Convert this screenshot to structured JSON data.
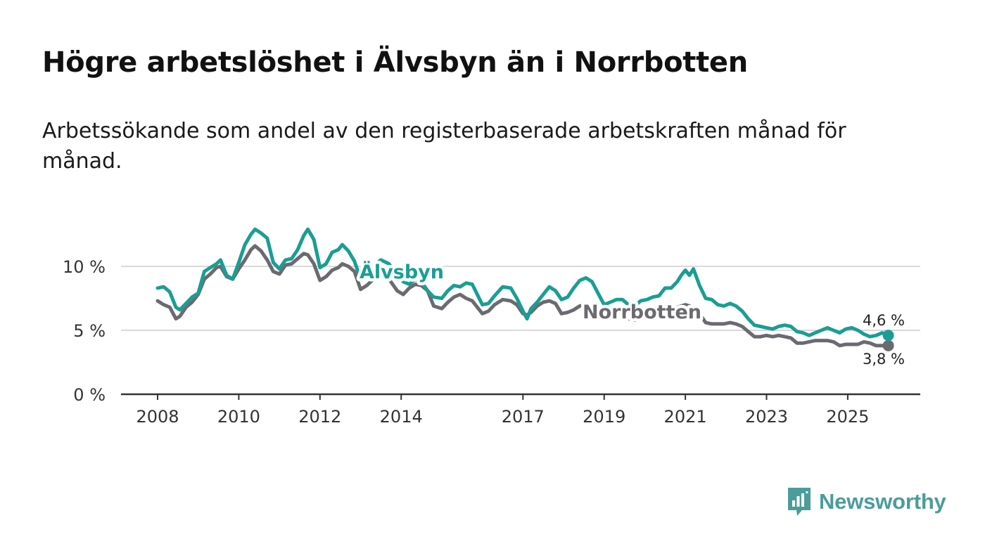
{
  "header": {
    "title": "Högre arbetslöshet i Älvsbyn än i Norrbotten",
    "subtitle": "Arbetssökande som andel av den registerbaserade arbetskraften månad för månad."
  },
  "brand": {
    "name": "Newsworthy",
    "color": "#4a9d9a",
    "icon": "bar-chart-bubble-icon"
  },
  "chart_data": {
    "type": "line",
    "title": "Högre arbetslöshet i Älvsbyn än i Norrbotten",
    "subtitle": "Arbetssökande som andel av den registerbaserade arbetskraften månad för månad.",
    "xlabel": "",
    "ylabel": "",
    "xlim": [
      2007.8,
      2026.5
    ],
    "ylim": [
      0,
      13
    ],
    "x_ticks": [
      {
        "value": 2008,
        "label": "2008"
      },
      {
        "value": 2010,
        "label": "2010"
      },
      {
        "value": 2012,
        "label": "2012"
      },
      {
        "value": 2014,
        "label": "2014"
      },
      {
        "value": 2017,
        "label": "2017"
      },
      {
        "value": 2019,
        "label": "2019"
      },
      {
        "value": 2021,
        "label": "2021"
      },
      {
        "value": 2023,
        "label": "2023"
      },
      {
        "value": 2025,
        "label": "2025"
      }
    ],
    "y_ticks": [
      {
        "value": 0,
        "label": "0 %"
      },
      {
        "value": 5,
        "label": "5 %"
      },
      {
        "value": 10,
        "label": "10 %"
      }
    ],
    "grid": "horizontal",
    "series": [
      {
        "name": "Älvsbyn",
        "color": "#1a9e93",
        "end_label": "4,6 %",
        "points": [
          [
            2008.0,
            8.3
          ],
          [
            2008.15,
            8.4
          ],
          [
            2008.3,
            8.0
          ],
          [
            2008.45,
            6.8
          ],
          [
            2008.55,
            6.6
          ],
          [
            2008.7,
            7.1
          ],
          [
            2008.85,
            7.6
          ],
          [
            2009.0,
            7.9
          ],
          [
            2009.15,
            9.6
          ],
          [
            2009.3,
            9.9
          ],
          [
            2009.45,
            10.2
          ],
          [
            2009.55,
            10.5
          ],
          [
            2009.7,
            9.3
          ],
          [
            2009.85,
            9.0
          ],
          [
            2010.0,
            10.3
          ],
          [
            2010.15,
            11.7
          ],
          [
            2010.3,
            12.5
          ],
          [
            2010.4,
            12.9
          ],
          [
            2010.55,
            12.6
          ],
          [
            2010.7,
            12.2
          ],
          [
            2010.85,
            10.3
          ],
          [
            2011.0,
            9.8
          ],
          [
            2011.15,
            10.5
          ],
          [
            2011.3,
            10.6
          ],
          [
            2011.45,
            11.3
          ],
          [
            2011.6,
            12.4
          ],
          [
            2011.7,
            12.9
          ],
          [
            2011.85,
            12.1
          ],
          [
            2012.0,
            9.9
          ],
          [
            2012.15,
            10.2
          ],
          [
            2012.3,
            11.1
          ],
          [
            2012.45,
            11.3
          ],
          [
            2012.55,
            11.7
          ],
          [
            2012.7,
            11.2
          ],
          [
            2012.85,
            10.4
          ],
          [
            2013.0,
            9.0
          ],
          [
            2013.15,
            9.4
          ],
          [
            2013.35,
            10.1
          ],
          [
            2013.5,
            10.5
          ],
          [
            2013.7,
            10.2
          ],
          [
            2013.9,
            9.3
          ],
          [
            2014.05,
            8.8
          ],
          [
            2014.2,
            8.6
          ],
          [
            2014.35,
            9.0
          ],
          [
            2014.5,
            8.8
          ],
          [
            2014.65,
            8.1
          ],
          [
            2014.8,
            7.6
          ],
          [
            2015.0,
            7.5
          ],
          [
            2015.15,
            8.1
          ],
          [
            2015.3,
            8.5
          ],
          [
            2015.45,
            8.4
          ],
          [
            2015.6,
            8.7
          ],
          [
            2015.75,
            8.6
          ],
          [
            2016.0,
            7.0
          ],
          [
            2016.15,
            7.1
          ],
          [
            2016.3,
            7.7
          ],
          [
            2016.5,
            8.4
          ],
          [
            2016.7,
            8.3
          ],
          [
            2016.85,
            7.5
          ],
          [
            2017.0,
            6.5
          ],
          [
            2017.1,
            5.9
          ],
          [
            2017.2,
            6.7
          ],
          [
            2017.35,
            7.2
          ],
          [
            2017.5,
            7.8
          ],
          [
            2017.65,
            8.4
          ],
          [
            2017.8,
            8.1
          ],
          [
            2017.95,
            7.4
          ],
          [
            2018.1,
            7.6
          ],
          [
            2018.25,
            8.3
          ],
          [
            2018.4,
            8.9
          ],
          [
            2018.55,
            9.1
          ],
          [
            2018.7,
            8.8
          ],
          [
            2018.85,
            7.9
          ],
          [
            2019.0,
            7.0
          ],
          [
            2019.15,
            7.2
          ],
          [
            2019.3,
            7.4
          ],
          [
            2019.45,
            7.4
          ],
          [
            2019.6,
            7.0
          ],
          [
            2019.75,
            6.9
          ],
          [
            2019.9,
            7.3
          ],
          [
            2020.05,
            7.4
          ],
          [
            2020.2,
            7.6
          ],
          [
            2020.35,
            7.7
          ],
          [
            2020.5,
            8.3
          ],
          [
            2020.65,
            8.3
          ],
          [
            2020.8,
            8.8
          ],
          [
            2020.9,
            9.3
          ],
          [
            2021.0,
            9.7
          ],
          [
            2021.1,
            9.3
          ],
          [
            2021.2,
            9.8
          ],
          [
            2021.35,
            8.5
          ],
          [
            2021.5,
            7.5
          ],
          [
            2021.65,
            7.4
          ],
          [
            2021.8,
            7.0
          ],
          [
            2021.95,
            6.9
          ],
          [
            2022.1,
            7.1
          ],
          [
            2022.25,
            6.9
          ],
          [
            2022.4,
            6.5
          ],
          [
            2022.55,
            5.9
          ],
          [
            2022.7,
            5.4
          ],
          [
            2022.85,
            5.3
          ],
          [
            2023.0,
            5.2
          ],
          [
            2023.15,
            5.1
          ],
          [
            2023.3,
            5.3
          ],
          [
            2023.45,
            5.4
          ],
          [
            2023.6,
            5.3
          ],
          [
            2023.75,
            4.9
          ],
          [
            2023.9,
            4.8
          ],
          [
            2024.05,
            4.6
          ],
          [
            2024.2,
            4.8
          ],
          [
            2024.35,
            5.0
          ],
          [
            2024.5,
            5.2
          ],
          [
            2024.65,
            5.0
          ],
          [
            2024.8,
            4.8
          ],
          [
            2024.95,
            5.1
          ],
          [
            2025.1,
            5.2
          ],
          [
            2025.25,
            5.0
          ],
          [
            2025.4,
            4.7
          ],
          [
            2025.55,
            4.5
          ],
          [
            2025.7,
            4.6
          ],
          [
            2025.85,
            4.8
          ],
          [
            2026.0,
            4.6
          ]
        ]
      },
      {
        "name": "Norrbotten",
        "color": "#6b6a70",
        "end_label": "3,8 %",
        "points": [
          [
            2008.0,
            7.3
          ],
          [
            2008.15,
            7.0
          ],
          [
            2008.3,
            6.8
          ],
          [
            2008.45,
            5.9
          ],
          [
            2008.55,
            6.1
          ],
          [
            2008.7,
            6.8
          ],
          [
            2008.85,
            7.2
          ],
          [
            2009.0,
            7.8
          ],
          [
            2009.15,
            9.0
          ],
          [
            2009.3,
            9.4
          ],
          [
            2009.45,
            9.9
          ],
          [
            2009.55,
            10.0
          ],
          [
            2009.7,
            9.2
          ],
          [
            2009.85,
            9.0
          ],
          [
            2010.0,
            9.8
          ],
          [
            2010.15,
            10.5
          ],
          [
            2010.3,
            11.3
          ],
          [
            2010.4,
            11.6
          ],
          [
            2010.55,
            11.2
          ],
          [
            2010.7,
            10.5
          ],
          [
            2010.85,
            9.6
          ],
          [
            2011.0,
            9.4
          ],
          [
            2011.15,
            10.1
          ],
          [
            2011.3,
            10.2
          ],
          [
            2011.45,
            10.6
          ],
          [
            2011.6,
            11.0
          ],
          [
            2011.7,
            10.9
          ],
          [
            2011.85,
            10.2
          ],
          [
            2012.0,
            8.9
          ],
          [
            2012.15,
            9.2
          ],
          [
            2012.3,
            9.7
          ],
          [
            2012.45,
            9.9
          ],
          [
            2012.55,
            10.2
          ],
          [
            2012.7,
            10.0
          ],
          [
            2012.85,
            9.6
          ],
          [
            2013.0,
            8.2
          ],
          [
            2013.15,
            8.5
          ],
          [
            2013.35,
            9.1
          ],
          [
            2013.5,
            9.4
          ],
          [
            2013.7,
            9.0
          ],
          [
            2013.9,
            8.1
          ],
          [
            2014.05,
            7.8
          ],
          [
            2014.2,
            8.3
          ],
          [
            2014.35,
            8.6
          ],
          [
            2014.5,
            8.5
          ],
          [
            2014.65,
            8.1
          ],
          [
            2014.8,
            6.9
          ],
          [
            2015.0,
            6.7
          ],
          [
            2015.15,
            7.2
          ],
          [
            2015.3,
            7.6
          ],
          [
            2015.45,
            7.8
          ],
          [
            2015.6,
            7.5
          ],
          [
            2015.75,
            7.3
          ],
          [
            2016.0,
            6.3
          ],
          [
            2016.15,
            6.5
          ],
          [
            2016.3,
            7.0
          ],
          [
            2016.5,
            7.4
          ],
          [
            2016.7,
            7.3
          ],
          [
            2016.85,
            7.0
          ],
          [
            2017.0,
            6.3
          ],
          [
            2017.1,
            6.2
          ],
          [
            2017.2,
            6.4
          ],
          [
            2017.35,
            6.9
          ],
          [
            2017.5,
            7.2
          ],
          [
            2017.65,
            7.3
          ],
          [
            2017.8,
            7.1
          ],
          [
            2017.95,
            6.3
          ],
          [
            2018.1,
            6.4
          ],
          [
            2018.25,
            6.6
          ],
          [
            2018.4,
            6.9
          ],
          [
            2018.55,
            7.0
          ],
          [
            2018.7,
            6.8
          ],
          [
            2018.85,
            6.5
          ],
          [
            2019.0,
            5.9
          ],
          [
            2019.15,
            6.0
          ],
          [
            2019.3,
            6.1
          ],
          [
            2019.45,
            6.1
          ],
          [
            2019.6,
            5.9
          ],
          [
            2019.75,
            5.8
          ],
          [
            2019.9,
            5.9
          ],
          [
            2020.05,
            6.1
          ],
          [
            2020.2,
            6.3
          ],
          [
            2020.35,
            6.5
          ],
          [
            2020.5,
            6.6
          ],
          [
            2020.65,
            6.7
          ],
          [
            2020.8,
            6.8
          ],
          [
            2020.9,
            6.9
          ],
          [
            2021.0,
            7.0
          ],
          [
            2021.1,
            6.9
          ],
          [
            2021.2,
            6.7
          ],
          [
            2021.35,
            6.3
          ],
          [
            2021.5,
            5.6
          ],
          [
            2021.65,
            5.5
          ],
          [
            2021.8,
            5.5
          ],
          [
            2021.95,
            5.5
          ],
          [
            2022.1,
            5.6
          ],
          [
            2022.25,
            5.5
          ],
          [
            2022.4,
            5.3
          ],
          [
            2022.55,
            4.9
          ],
          [
            2022.7,
            4.5
          ],
          [
            2022.85,
            4.5
          ],
          [
            2023.0,
            4.6
          ],
          [
            2023.15,
            4.5
          ],
          [
            2023.3,
            4.6
          ],
          [
            2023.45,
            4.5
          ],
          [
            2023.6,
            4.4
          ],
          [
            2023.75,
            4.0
          ],
          [
            2023.9,
            4.0
          ],
          [
            2024.05,
            4.1
          ],
          [
            2024.2,
            4.2
          ],
          [
            2024.35,
            4.2
          ],
          [
            2024.5,
            4.2
          ],
          [
            2024.65,
            4.1
          ],
          [
            2024.8,
            3.8
          ],
          [
            2024.95,
            3.9
          ],
          [
            2025.1,
            3.9
          ],
          [
            2025.25,
            3.9
          ],
          [
            2025.4,
            4.1
          ],
          [
            2025.55,
            4.0
          ],
          [
            2025.7,
            3.8
          ],
          [
            2025.85,
            3.8
          ],
          [
            2026.0,
            3.8
          ]
        ]
      }
    ]
  }
}
